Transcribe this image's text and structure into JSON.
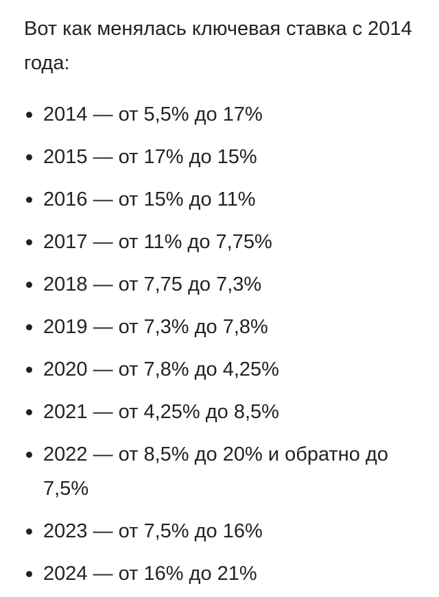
{
  "intro": "Вот как менялась ключевая ставка с 2014 года:",
  "items": [
    "2014 — от 5,5% до 17%",
    "2015 — от 17% до 15%",
    "2016 — от 15% до 11%",
    "2017 — от 11% до 7,75%",
    "2018 — от 7,75 до 7,3%",
    "2019 — от 7,3% до 7,8%",
    "2020 — от 7,8% до 4,25%",
    "2021 — от 4,25% до 8,5%",
    "2022 — от 8,5% до 20% и обратно до 7,5%",
    "2023 — от 7,5% до 16%",
    "2024 — от 16% до 21%"
  ]
}
